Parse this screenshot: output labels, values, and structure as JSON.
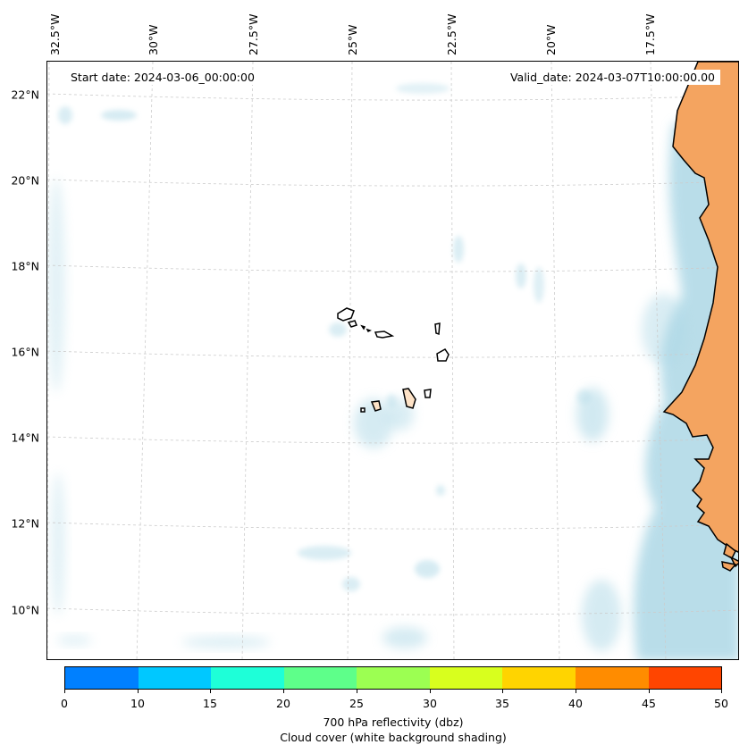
{
  "header": {
    "start_date": "Start date: 2024-03-06_00:00:00",
    "valid_date": "Valid_date: 2024-03-07T10:00:00.00"
  },
  "axes": {
    "longitude_labels": [
      "32.5°W",
      "30°W",
      "27.5°W",
      "25°W",
      "22.5°W",
      "20°W",
      "17.5°W"
    ],
    "latitude_labels": [
      "22°N",
      "20°N",
      "18°N",
      "16°N",
      "14°N",
      "12°N",
      "10°N"
    ]
  },
  "map": {
    "gridlines": "dashed light grey",
    "land_color": "#f4a460",
    "cloud_color": "#add8e6",
    "coastline_color": "#000000"
  },
  "colorbar": {
    "ticks": [
      "0",
      "10",
      "15",
      "20",
      "25",
      "30",
      "35",
      "40",
      "45",
      "50"
    ],
    "colors": [
      "#0080ff",
      "#00c8ff",
      "#1effd8",
      "#5eff8a",
      "#9cff52",
      "#d8ff1e",
      "#ffd400",
      "#ff8c00",
      "#ff4500"
    ],
    "label_line1": "700 hPa reflectivity (dbz)",
    "label_line2": "Cloud cover (white background shading)"
  }
}
